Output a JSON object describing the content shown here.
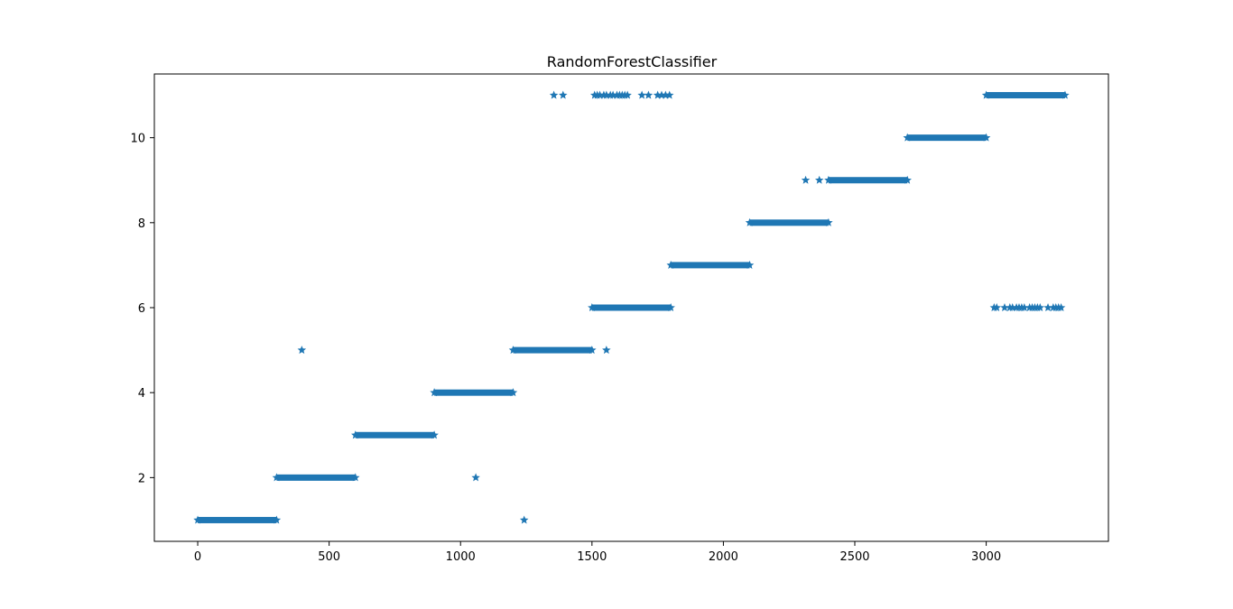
{
  "chart_data": {
    "type": "scatter",
    "title": "RandomForestClassifier",
    "xlabel": "",
    "ylabel": "",
    "xlim": [
      -165,
      3465
    ],
    "ylim": [
      0.5,
      11.5
    ],
    "xticks": [
      0,
      500,
      1000,
      1500,
      2000,
      2500,
      3000
    ],
    "yticks": [
      2,
      4,
      6,
      8,
      10
    ],
    "grid": false,
    "marker": "*",
    "color": "#1f77b4",
    "segments": [
      {
        "x_start": 0,
        "x_end": 300,
        "y": 1
      },
      {
        "x_start": 300,
        "x_end": 600,
        "y": 2
      },
      {
        "x_start": 600,
        "x_end": 900,
        "y": 3
      },
      {
        "x_start": 900,
        "x_end": 1200,
        "y": 4
      },
      {
        "x_start": 1200,
        "x_end": 1500,
        "y": 5
      },
      {
        "x_start": 1500,
        "x_end": 1800,
        "y": 6
      },
      {
        "x_start": 1800,
        "x_end": 2100,
        "y": 7
      },
      {
        "x_start": 2100,
        "x_end": 2400,
        "y": 8
      },
      {
        "x_start": 2400,
        "x_end": 2700,
        "y": 9
      },
      {
        "x_start": 2700,
        "x_end": 3000,
        "y": 10
      },
      {
        "x_start": 3000,
        "x_end": 3300,
        "y": 11
      }
    ],
    "outliers": [
      {
        "x": 396,
        "y": 5
      },
      {
        "x": 1058,
        "y": 2
      },
      {
        "x": 1242,
        "y": 1
      },
      {
        "x": 1355,
        "y": 11
      },
      {
        "x": 1390,
        "y": 11
      },
      {
        "x": 1510,
        "y": 11
      },
      {
        "x": 1520,
        "y": 11
      },
      {
        "x": 1530,
        "y": 11
      },
      {
        "x": 1545,
        "y": 11
      },
      {
        "x": 1555,
        "y": 11
      },
      {
        "x": 1570,
        "y": 11
      },
      {
        "x": 1580,
        "y": 11
      },
      {
        "x": 1595,
        "y": 11
      },
      {
        "x": 1605,
        "y": 11
      },
      {
        "x": 1615,
        "y": 11
      },
      {
        "x": 1625,
        "y": 11
      },
      {
        "x": 1635,
        "y": 11
      },
      {
        "x": 1690,
        "y": 11
      },
      {
        "x": 1715,
        "y": 11
      },
      {
        "x": 1750,
        "y": 11
      },
      {
        "x": 1765,
        "y": 11
      },
      {
        "x": 1780,
        "y": 11
      },
      {
        "x": 1795,
        "y": 11
      },
      {
        "x": 1555,
        "y": 5
      },
      {
        "x": 2313,
        "y": 9
      },
      {
        "x": 2365,
        "y": 9
      },
      {
        "x": 3030,
        "y": 6
      },
      {
        "x": 3040,
        "y": 6
      },
      {
        "x": 3070,
        "y": 6
      },
      {
        "x": 3090,
        "y": 6
      },
      {
        "x": 3100,
        "y": 6
      },
      {
        "x": 3115,
        "y": 6
      },
      {
        "x": 3125,
        "y": 6
      },
      {
        "x": 3135,
        "y": 6
      },
      {
        "x": 3145,
        "y": 6
      },
      {
        "x": 3165,
        "y": 6
      },
      {
        "x": 3175,
        "y": 6
      },
      {
        "x": 3185,
        "y": 6
      },
      {
        "x": 3195,
        "y": 6
      },
      {
        "x": 3205,
        "y": 6
      },
      {
        "x": 3235,
        "y": 6
      },
      {
        "x": 3255,
        "y": 6
      },
      {
        "x": 3265,
        "y": 6
      },
      {
        "x": 3275,
        "y": 6
      },
      {
        "x": 3285,
        "y": 6
      }
    ]
  }
}
